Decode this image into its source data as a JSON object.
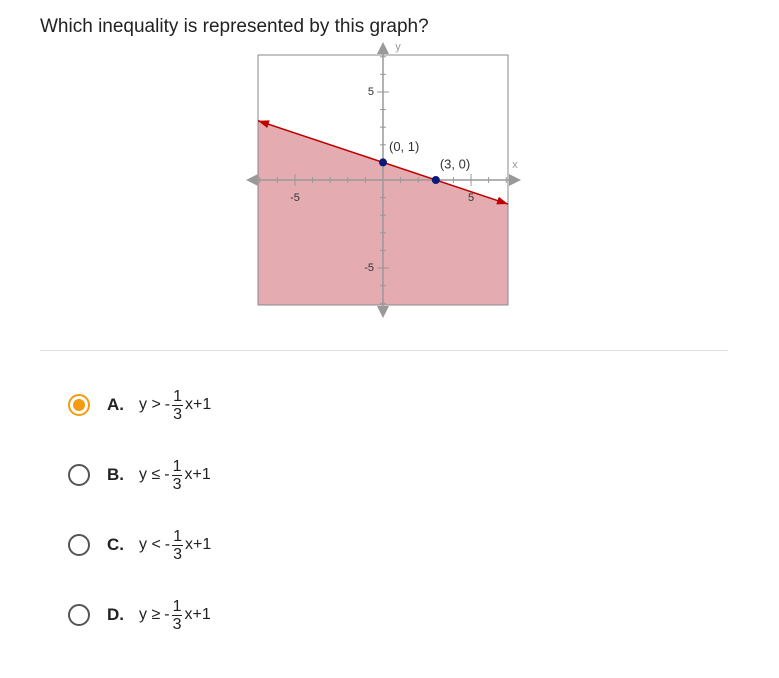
{
  "question": "Which inequality is represented by this graph?",
  "graph": {
    "x_label": "x",
    "y_label": "y",
    "xlim": [
      -7.1,
      7.1
    ],
    "ylim": [
      -7.1,
      7.1
    ],
    "xticks": [
      -5,
      5
    ],
    "yticks": [
      -5,
      5
    ],
    "points": [
      {
        "x": 0,
        "y": 1,
        "label": "(0, 1)"
      },
      {
        "x": 3,
        "y": 0,
        "label": "(3, 0)"
      }
    ],
    "shade": "below",
    "color": "#c00000",
    "fill": "#e4acb0"
  },
  "options": [
    {
      "letter": "A.",
      "relation": "y >",
      "sign": "-",
      "numerator": "1",
      "denominator": "3",
      "rest": "x+1",
      "selected": true
    },
    {
      "letter": "B.",
      "relation": "y ≤",
      "sign": "-",
      "numerator": "1",
      "denominator": "3",
      "rest": "x+1",
      "selected": false
    },
    {
      "letter": "C.",
      "relation": "y <",
      "sign": "-",
      "numerator": "1",
      "denominator": "3",
      "rest": "x+1",
      "selected": false
    },
    {
      "letter": "D.",
      "relation": "y ≥",
      "sign": "-",
      "numerator": "1",
      "denominator": "3",
      "rest": "x+1",
      "selected": false
    }
  ]
}
